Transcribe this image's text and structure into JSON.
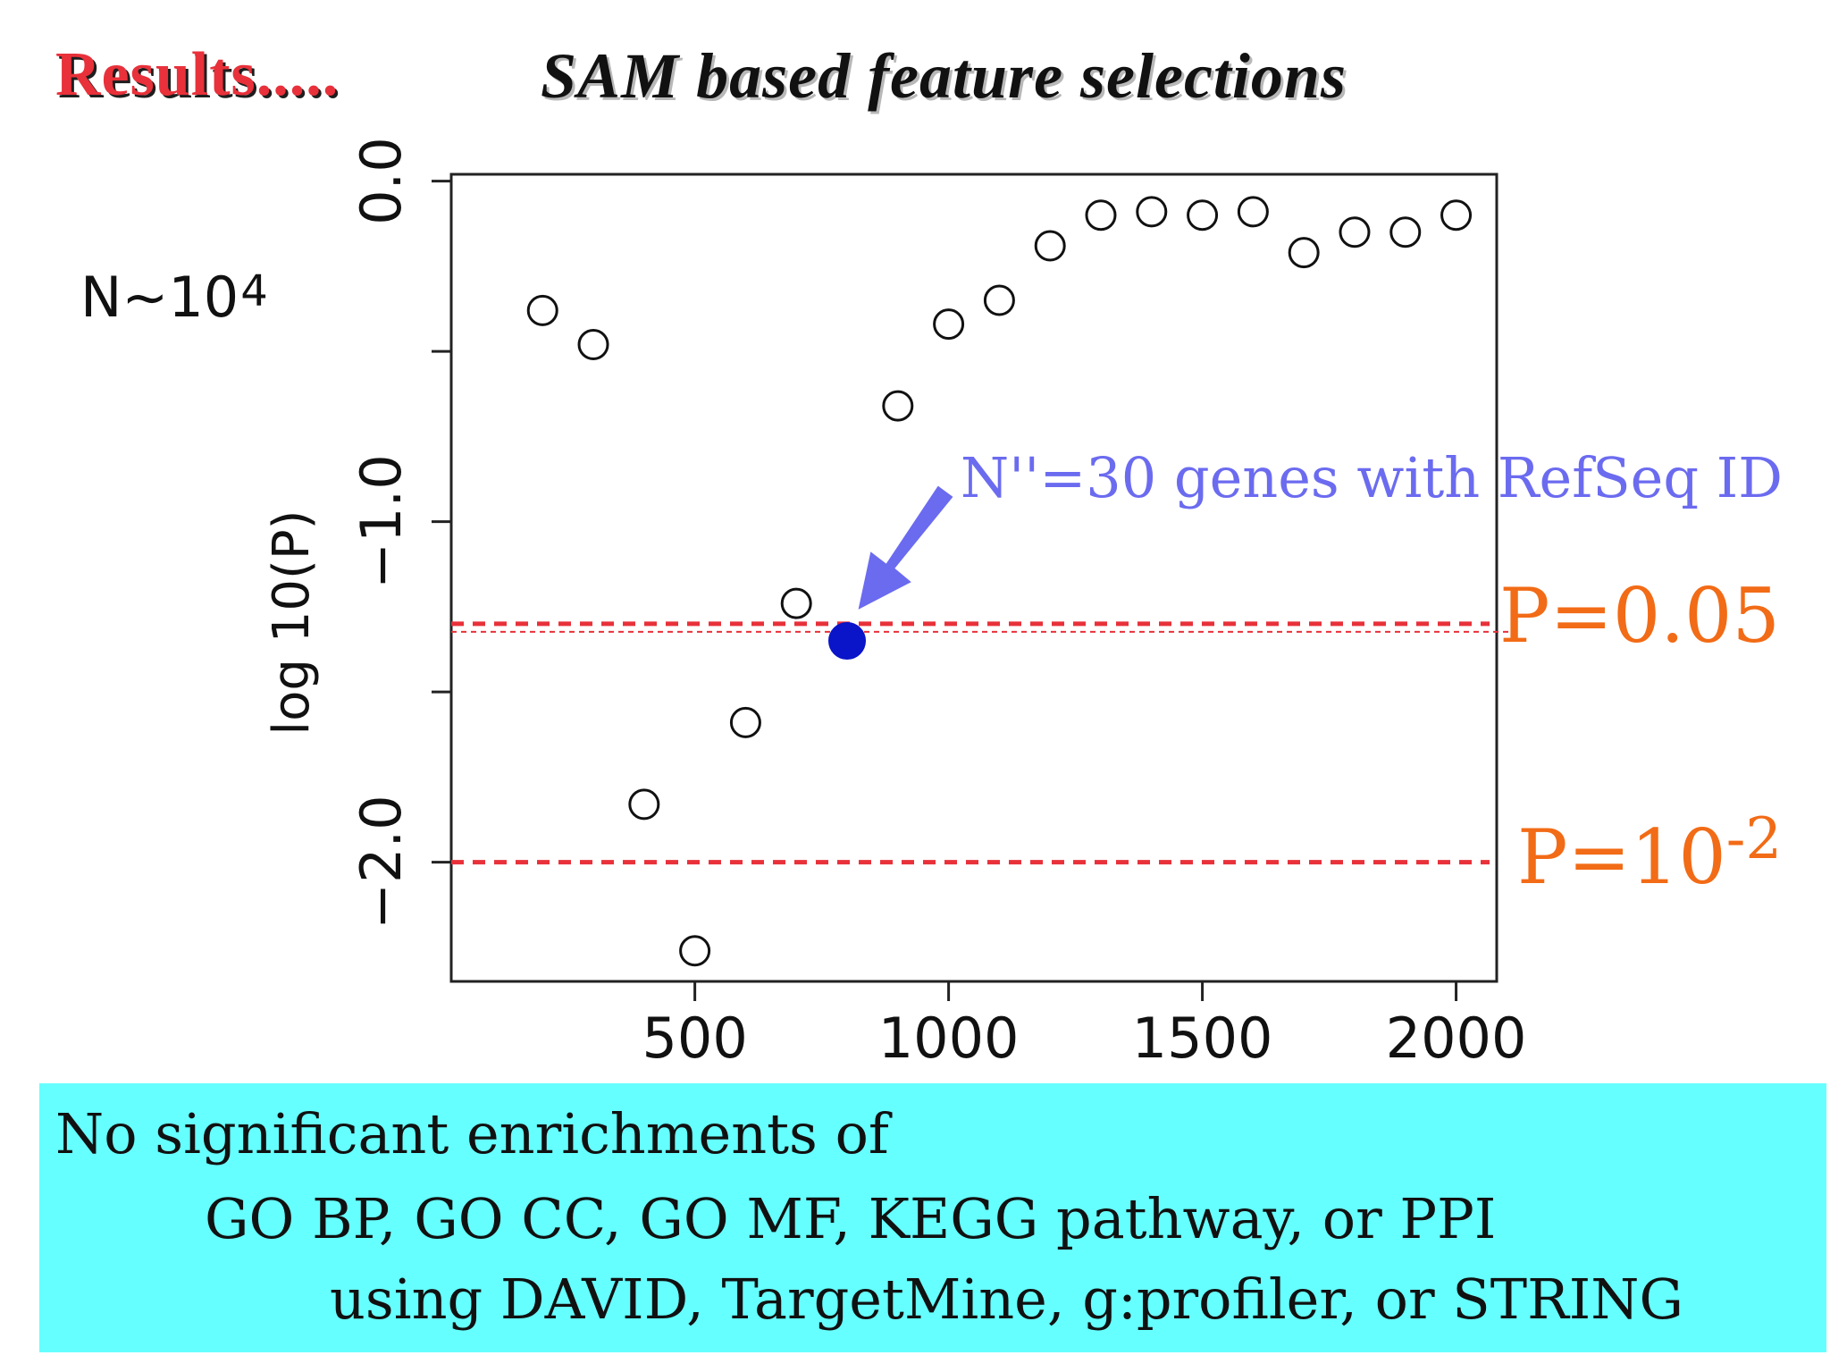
{
  "header": {
    "results_label": "Results.....",
    "title": "SAM based feature selections"
  },
  "annotation": {
    "n_base": "N∼10",
    "n_exponent": "4",
    "callout": "N''=30 genes with RefSeq ID"
  },
  "thresholds": {
    "p005_label": "P=0.05",
    "p1e2_base": "P=10",
    "p1e2_exp": "-2"
  },
  "footer": {
    "line1": "No significant enrichments of",
    "line2": "GO BP, GO CC, GO MF, KEGG pathway, or PPI",
    "line3": "using DAVID, TargetMine, g:profiler, or STRING",
    "background": "#66ffff"
  },
  "chart_data": {
    "type": "scatter",
    "title": "",
    "xlabel": "",
    "ylabel": "log 10(P)",
    "xlim": [
      20,
      2080
    ],
    "ylim": [
      -2.35,
      0.02
    ],
    "x_ticks": [
      500,
      1000,
      1500,
      2000
    ],
    "x_tick_labels": [
      "500",
      "1000",
      "1500",
      "2000"
    ],
    "y_ticks": [
      0.0,
      -0.5,
      -1.0,
      -1.5,
      -2.0
    ],
    "y_tick_labels": [
      "0.0",
      "",
      "−1.0",
      "",
      "−2.0"
    ],
    "series": [
      {
        "x": [
          200,
          300,
          400,
          500,
          600,
          700,
          900,
          1000,
          1100,
          1200,
          1300,
          1400,
          1500,
          1600,
          1700,
          1800,
          1900,
          2000
        ],
        "y": [
          -0.38,
          -0.48,
          -1.83,
          -2.26,
          -1.59,
          -1.24,
          -0.66,
          -0.42,
          -0.35,
          -0.19,
          -0.1,
          -0.09,
          -0.1,
          -0.09,
          -0.21,
          -0.15,
          -0.15,
          -0.1
        ],
        "marker": "open-circle",
        "color": "#111111"
      }
    ],
    "highlight": {
      "x": 800,
      "y": -1.35,
      "color": "#0a14c8"
    },
    "hlines": [
      {
        "y": -1.3,
        "color": "#e8313a",
        "style": "dashed"
      },
      {
        "y": -2.0,
        "color": "#e8313a",
        "style": "dashed"
      }
    ],
    "grid": false,
    "legend": "none"
  }
}
